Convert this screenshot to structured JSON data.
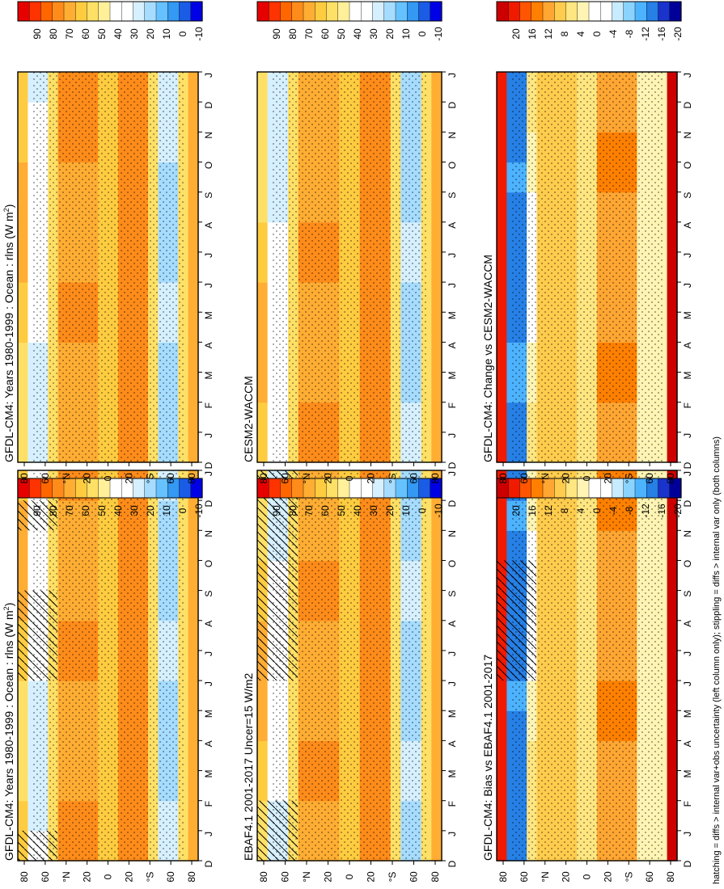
{
  "chart_data": [
    {
      "type": "heatmap",
      "panel": "top-left",
      "title": "GFDL-CM4: Years 1980-1999 : Ocean : rlns (W m",
      "title_sup": "2",
      "title_close": ")",
      "x_ticks": [
        "D",
        "J",
        "F",
        "M",
        "A",
        "M",
        "J",
        "J",
        "A",
        "S",
        "O",
        "N",
        "D",
        "J"
      ],
      "y_ticks": [
        "80",
        "60",
        "°N",
        "20",
        "0",
        "20",
        "°S",
        "60",
        "80"
      ],
      "colorbar_ticks": [
        "90",
        "80",
        "70",
        "60",
        "50",
        "40",
        "30",
        "20",
        "10",
        "0",
        "-10"
      ],
      "scheme": "abs",
      "hatched_months": [
        0,
        6,
        7,
        8,
        11
      ],
      "stipple": true
    },
    {
      "type": "heatmap",
      "panel": "top-right",
      "title": "GFDL-CM4: Years 1980-1999 : Ocean : rlns (W m",
      "title_sup": "2",
      "title_close": ")",
      "x_ticks": [
        "D",
        "J",
        "F",
        "M",
        "A",
        "M",
        "J",
        "J",
        "A",
        "S",
        "O",
        "N",
        "D",
        "J"
      ],
      "y_ticks": [
        "80",
        "60",
        "°N",
        "20",
        "0",
        "20",
        "°S",
        "60",
        "80"
      ],
      "colorbar_ticks": [
        "90",
        "80",
        "70",
        "60",
        "50",
        "40",
        "30",
        "20",
        "10",
        "0",
        "-10"
      ],
      "scheme": "abs",
      "hatched_months": [],
      "stipple": true
    },
    {
      "type": "heatmap",
      "panel": "middle-left",
      "title": "EBAF4.1 2001-2017 Uncer=15 W/m2",
      "x_ticks": [
        "D",
        "J",
        "F",
        "M",
        "A",
        "M",
        "J",
        "J",
        "A",
        "S",
        "O",
        "N",
        "D",
        "J"
      ],
      "y_ticks": [
        "80",
        "60",
        "°N",
        "20",
        "0",
        "20",
        "°S",
        "60",
        "80"
      ],
      "colorbar_ticks": [
        "90",
        "80",
        "70",
        "60",
        "50",
        "40",
        "30",
        "20",
        "10",
        "0",
        "-10"
      ],
      "scheme": "abs",
      "hatched_months": [
        0,
        1,
        6,
        7,
        8,
        9,
        10,
        11,
        12
      ],
      "stipple": true
    },
    {
      "type": "heatmap",
      "panel": "middle-right",
      "title": "CESM2-WACCM",
      "x_ticks": [
        "D",
        "J",
        "F",
        "M",
        "A",
        "M",
        "J",
        "J",
        "A",
        "S",
        "O",
        "N",
        "D",
        "J"
      ],
      "y_ticks": [
        "80",
        "60",
        "°N",
        "20",
        "0",
        "20",
        "°S",
        "60",
        "80"
      ],
      "colorbar_ticks": [
        "90",
        "80",
        "70",
        "60",
        "50",
        "40",
        "30",
        "20",
        "10",
        "0",
        "-10"
      ],
      "scheme": "abs",
      "hatched_months": [],
      "stipple": true
    },
    {
      "type": "heatmap",
      "panel": "bottom-left",
      "title": "GFDL-CM4: Bias vs EBAF4.1 2001-2017",
      "x_ticks": [
        "D",
        "J",
        "F",
        "M",
        "A",
        "M",
        "J",
        "J",
        "A",
        "S",
        "O",
        "N",
        "D",
        "J"
      ],
      "y_ticks": [
        "80",
        "60",
        "°N",
        "20",
        "0",
        "20",
        "°S",
        "60",
        "80"
      ],
      "colorbar_ticks": [
        "20",
        "16",
        "12",
        "8",
        "4",
        "0",
        "-4",
        "-8",
        "-12",
        "-16",
        "-20"
      ],
      "scheme": "diff",
      "hatched_months": [
        6,
        7,
        8,
        9
      ],
      "stipple": true
    },
    {
      "type": "heatmap",
      "panel": "bottom-right",
      "title": "GFDL-CM4: Change vs CESM2-WACCM",
      "x_ticks": [
        "D",
        "J",
        "F",
        "M",
        "A",
        "M",
        "J",
        "J",
        "A",
        "S",
        "O",
        "N",
        "D",
        "J"
      ],
      "y_ticks": [
        "80",
        "60",
        "°N",
        "20",
        "0",
        "20",
        "°S",
        "60",
        "80"
      ],
      "colorbar_ticks": [
        "20",
        "16",
        "12",
        "8",
        "4",
        "0",
        "-4",
        "-8",
        "-12",
        "-16",
        "-20"
      ],
      "scheme": "diff",
      "hatched_months": [],
      "stipple": true
    }
  ],
  "caption": "hatching = diffs > internal var+obs uncertainty (left column only); stippling = diffs > internal var only (both columns)",
  "colors": {
    "abs": [
      "#e60000",
      "#ff3300",
      "#ff6600",
      "#ff8c1a",
      "#ffad33",
      "#ffcc40",
      "#ffe066",
      "#fff099",
      "#ffffff",
      "#ffffff",
      "#d6f0ff",
      "#a6dcff",
      "#66c2ff",
      "#3399f2",
      "#1a5ce6",
      "#0000e6"
    ],
    "diff": [
      "#cc0000",
      "#f01a00",
      "#ff5500",
      "#ff8000",
      "#ffa633",
      "#ffcc4d",
      "#ffe680",
      "#fff4b3",
      "#ffffff",
      "#ffffff",
      "#c7ecff",
      "#8ad3ff",
      "#4db3ff",
      "#2680e6",
      "#1a33cc",
      "#000099"
    ]
  }
}
